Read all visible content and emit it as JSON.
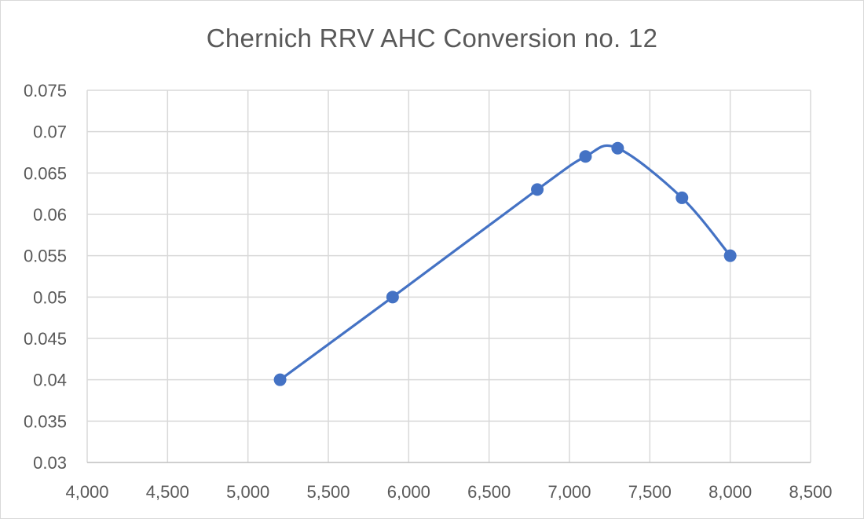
{
  "chart_data": {
    "type": "scatter",
    "title": "Chernich RRV AHC Conversion no. 12",
    "xlabel": "",
    "ylabel": "",
    "xlim": [
      4000,
      8500
    ],
    "ylim": [
      0.03,
      0.075
    ],
    "x_ticks": [
      4000,
      4500,
      5000,
      5500,
      6000,
      6500,
      7000,
      7500,
      8000,
      8500
    ],
    "x_tick_labels": [
      "4,000",
      "4,500",
      "5,000",
      "5,500",
      "6,000",
      "6,500",
      "7,000",
      "7,500",
      "8,000",
      "8,500"
    ],
    "y_ticks": [
      0.03,
      0.035,
      0.04,
      0.045,
      0.05,
      0.055,
      0.06,
      0.065,
      0.07,
      0.075
    ],
    "y_tick_labels": [
      "0.03",
      "0.035",
      "0.04",
      "0.045",
      "0.05",
      "0.055",
      "0.06",
      "0.065",
      "0.07",
      "0.075"
    ],
    "grid": true,
    "smooth_line": true,
    "legend": "none",
    "series": [
      {
        "x": [
          5200,
          5900,
          6800,
          7100,
          7300,
          7700,
          8000
        ],
        "y": [
          0.04,
          0.05,
          0.063,
          0.067,
          0.068,
          0.062,
          0.055
        ],
        "color": "#4472c4"
      }
    ]
  }
}
